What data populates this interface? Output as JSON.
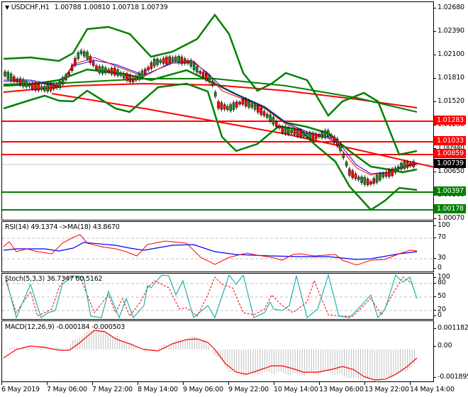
{
  "window": {
    "symbol_header": "USDCHF,H1",
    "ohlc": "1.00788 1.00810 1.00718 1.00739",
    "dropdown_icon": "triangle-down-icon"
  },
  "main_chart": {
    "price_ticks": [
      "1.02680",
      "1.02390",
      "1.02100",
      "1.01810",
      "1.01520",
      "1.01230",
      "1.00940",
      "1.00650",
      "1.00360",
      "1.00070"
    ],
    "price_labels": [
      {
        "value": "1.01283",
        "color": "#ff0000"
      },
      {
        "value": "1.01033",
        "color": "#ff0000"
      },
      {
        "value": "1.00859",
        "color": "#ff0000"
      },
      {
        "value": "1.00739",
        "color": "#000000"
      },
      {
        "value": "1.00397",
        "color": "#008000"
      },
      {
        "value": "1.00178",
        "color": "#008000"
      }
    ]
  },
  "rsi": {
    "legend": "RSI(14) 49.1374  ->MA(18) 43.8670",
    "ticks": [
      "100",
      "70",
      "30",
      "0"
    ]
  },
  "stoch": {
    "legend": "Stoch(5,3,3) 36.7347 60.5162",
    "ticks": [
      "100",
      "80",
      "50",
      "20",
      "0"
    ]
  },
  "macd": {
    "legend": "MACD(12,26,9) -0.000184 -0.000503",
    "ticks": [
      "0.001182",
      "0.00",
      "-0.001895"
    ]
  },
  "time_axis": [
    "6 May 2019",
    "7 May 06:00",
    "7 May 22:00",
    "8 May 14:00",
    "9 May 06:00",
    "9 May 22:00",
    "10 May 14:00",
    "13 May 06:00",
    "13 May 22:00",
    "14 May 14:00"
  ],
  "chart_data": [
    {
      "type": "candlestick",
      "title": "USDCHF,H1",
      "ohlc_last": {
        "open": 1.00788,
        "high": 1.0081,
        "low": 1.00718,
        "close": 1.00739
      },
      "ylim": [
        1.0007,
        1.0268
      ],
      "y_ticks": [
        1.0268,
        1.0239,
        1.021,
        1.0181,
        1.0152,
        1.0123,
        1.0094,
        1.0065,
        1.0036,
        1.0007
      ],
      "x_ticks": [
        "6 May 2019",
        "7 May 06:00",
        "7 May 22:00",
        "8 May 14:00",
        "9 May 06:00",
        "9 May 22:00",
        "10 May 14:00",
        "13 May 06:00",
        "13 May 22:00",
        "14 May 14:00"
      ],
      "approx_close_path": [
        {
          "t": "6 May 2019",
          "close": 1.0185
        },
        {
          "t": "7 May 06:00",
          "close": 1.017
        },
        {
          "t": "7 May 22:00",
          "close": 1.019
        },
        {
          "t": "8 May 14:00",
          "close": 1.0195
        },
        {
          "t": "9 May 06:00",
          "close": 1.018
        },
        {
          "t": "9 May 22:00",
          "close": 1.013
        },
        {
          "t": "10 May 14:00",
          "close": 1.01
        },
        {
          "t": "13 May 06:00",
          "close": 1.006
        },
        {
          "t": "13 May 22:00",
          "close": 1.0065
        },
        {
          "t": "14 May 14:00",
          "close": 1.00739
        }
      ],
      "horizontal_levels": [
        {
          "price": 1.01283,
          "color": "red"
        },
        {
          "price": 1.01033,
          "color": "red"
        },
        {
          "price": 1.00859,
          "color": "red"
        },
        {
          "price": 1.00397,
          "color": "green"
        },
        {
          "price": 1.00178,
          "color": "green"
        }
      ],
      "overlays": [
        "Bollinger Bands (green)",
        "Moving averages (red, blue, green)",
        "Red trend lines"
      ],
      "current_price": 1.00739
    },
    {
      "type": "line",
      "title": "RSI(14) 49.1374 ->MA(18) 43.8670",
      "ylim": [
        0,
        100
      ],
      "levels": [
        70,
        30
      ],
      "series": [
        {
          "name": "RSI(14)",
          "color": "red",
          "last": 49.1374
        },
        {
          "name": "MA(18)",
          "color": "blue",
          "last": 43.867
        }
      ]
    },
    {
      "type": "line",
      "title": "Stoch(5,3,3) 36.7347 60.5162",
      "ylim": [
        0,
        100
      ],
      "levels": [
        80,
        50,
        20
      ],
      "series": [
        {
          "name": "%K",
          "color": "lightseagreen",
          "last": 36.7347
        },
        {
          "name": "%D",
          "color": "red",
          "style": "dashed",
          "last": 60.5162
        }
      ]
    },
    {
      "type": "bar",
      "title": "MACD(12,26,9) -0.000184 -0.000503",
      "ylim": [
        -0.001895,
        0.001182
      ],
      "series": [
        {
          "name": "MACD histogram",
          "color": "silver",
          "last": -0.000184
        },
        {
          "name": "Signal",
          "color": "red",
          "last": -0.000503
        }
      ]
    }
  ]
}
